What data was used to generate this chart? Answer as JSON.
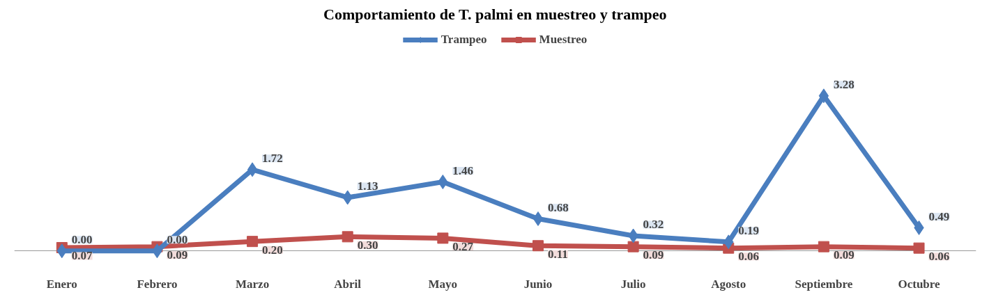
{
  "chart_data": {
    "type": "line",
    "title": "Comportamiento de T. palmi en muestreo y trampeo",
    "categories": [
      "Enero",
      "Febrero",
      "Marzo",
      "Abril",
      "Mayo",
      "Junio",
      "Julio",
      "Agosto",
      "Septiembre",
      "Octubre"
    ],
    "series": [
      {
        "name": "Trampeo",
        "color": "#4a7ebf",
        "values": [
          0.0,
          0.0,
          1.72,
          1.13,
          1.46,
          0.68,
          0.32,
          0.19,
          3.28,
          0.49
        ],
        "marker": "diamond",
        "value_labels": [
          "0.00",
          "0.00",
          "1.72",
          "1.13",
          "1.46",
          "0.68",
          "0.32",
          "0.19",
          "3.28",
          "0.49"
        ]
      },
      {
        "name": "Muestreo",
        "color": "#c0504d",
        "values": [
          0.07,
          0.09,
          0.2,
          0.3,
          0.27,
          0.11,
          0.09,
          0.06,
          0.09,
          0.06
        ],
        "marker": "square",
        "value_labels": [
          "0.07",
          "0.09",
          "0.20",
          "0.30",
          "0.27",
          "0.11",
          "0.09",
          "0.06",
          "0.09",
          "0.06"
        ]
      }
    ],
    "tick_labels": "x",
    "grid": false,
    "legend": "top",
    "line_style": "solid"
  }
}
